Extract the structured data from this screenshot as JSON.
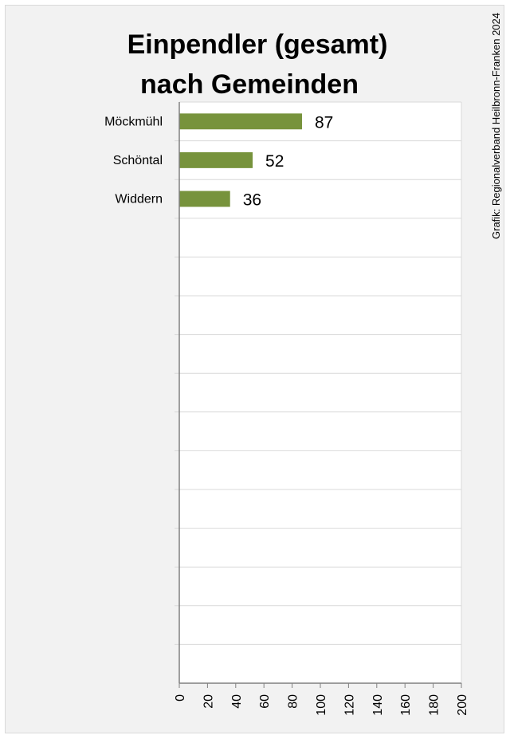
{
  "chart_data": {
    "type": "bar",
    "orientation": "horizontal",
    "title_lines": [
      "Einpendler (gesamt)",
      "nach Gemeinden"
    ],
    "categories": [
      "Möckmühl",
      "Schöntal",
      "Widdern"
    ],
    "values": [
      87,
      52,
      36
    ],
    "xlim": [
      0,
      200
    ],
    "x_ticks": [
      0,
      20,
      40,
      60,
      80,
      100,
      120,
      140,
      160,
      180,
      200
    ],
    "category_slots": 15,
    "grid": true,
    "bar_color": "#77933c",
    "data_labels": true,
    "legend": "none"
  },
  "credit": "Grafik: Regionalverband Heilbronn-Franken 2024",
  "colors": {
    "panel_background": "#f2f2f2",
    "plot_background": "#ffffff",
    "gridline": "#d9d9d9",
    "axis": "#808080",
    "text": "#000000"
  }
}
